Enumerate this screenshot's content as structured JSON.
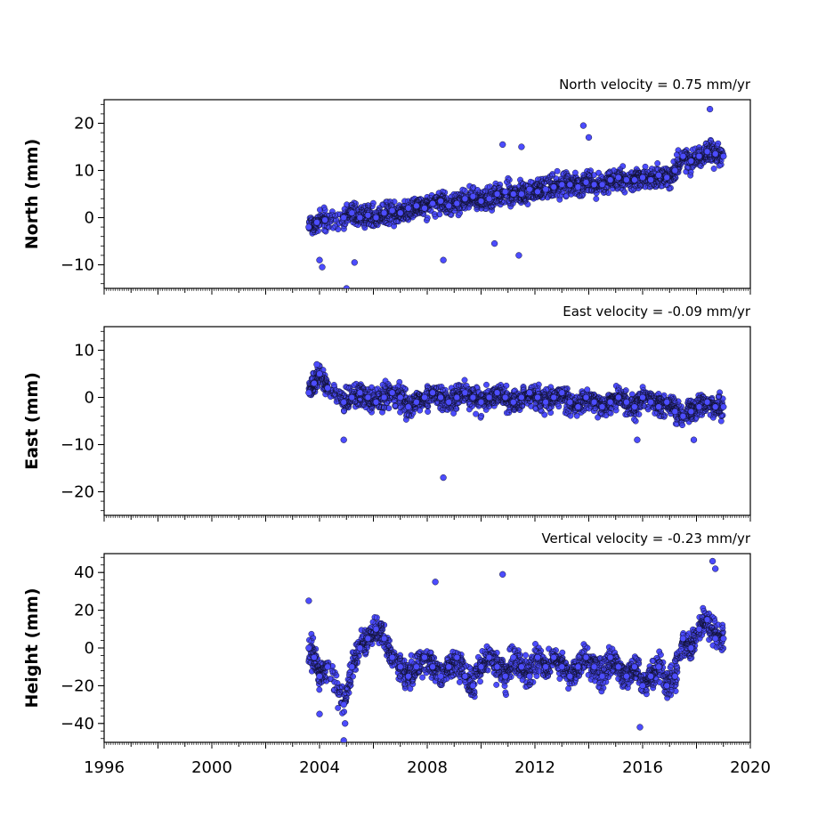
{
  "chart_data": [
    {
      "type": "scatter",
      "title": "North velocity = 0.75 mm/yr",
      "xlabel": "",
      "ylabel": "North (mm)",
      "xlim": [
        1996,
        2020
      ],
      "ylim": [
        -15,
        25
      ],
      "yticks": [
        20,
        10,
        0,
        -10
      ],
      "ytick_labels": [
        "20",
        "10",
        "0",
        "−10"
      ],
      "grid": false,
      "series": [
        {
          "color": "#4c4cff",
          "x": [
            2003.6,
            2003.9,
            2004.2,
            2004.9,
            2005.2,
            2005.5,
            2005.8,
            2006.1,
            2006.4,
            2006.7,
            2007.0,
            2007.3,
            2007.6,
            2007.9,
            2008.2,
            2008.5,
            2008.8,
            2009.1,
            2009.4,
            2009.7,
            2010.0,
            2010.3,
            2010.6,
            2010.9,
            2011.2,
            2011.5,
            2011.8,
            2012.1,
            2012.4,
            2012.7,
            2013.0,
            2013.3,
            2013.6,
            2013.9,
            2014.2,
            2014.5,
            2014.8,
            2015.1,
            2015.4,
            2015.7,
            2016.0,
            2016.3,
            2016.6,
            2016.9,
            2017.2,
            2017.5,
            2017.8,
            2018.1,
            2018.4,
            2018.7,
            2019.0,
            2004.0,
            2004.1,
            2005.0,
            2005.3,
            2008.6,
            2010.5,
            2010.8,
            2011.4,
            2011.5,
            2013.8,
            2014.0,
            2018.5
          ],
          "y": [
            -2,
            -1,
            -0.5,
            0,
            1,
            0,
            0.5,
            0,
            1,
            1.5,
            1,
            2,
            2.5,
            2,
            3,
            3.5,
            2.5,
            3,
            4,
            4.5,
            3.5,
            4,
            5,
            5.5,
            5,
            5,
            6,
            5.5,
            6,
            6.5,
            7,
            7,
            6.5,
            7.5,
            7,
            7,
            8,
            8.5,
            8,
            8,
            8.5,
            8,
            9,
            8.5,
            10,
            13,
            12,
            13,
            14,
            13.5,
            13,
            -9,
            -10.5,
            -15,
            -9.5,
            -9,
            -5.5,
            15.5,
            -8,
            15,
            19.5,
            17,
            23
          ]
        }
      ]
    },
    {
      "type": "scatter",
      "title": "East velocity = -0.09 mm/yr",
      "xlabel": "",
      "ylabel": "East (mm)",
      "xlim": [
        1996,
        2020
      ],
      "ylim": [
        -25,
        15
      ],
      "yticks": [
        10,
        0,
        -10,
        -20
      ],
      "ytick_labels": [
        "10",
        "0",
        "−10",
        "−20"
      ],
      "grid": false,
      "series": [
        {
          "color": "#4c4cff",
          "x": [
            2003.6,
            2003.8,
            2004.0,
            2004.3,
            2004.9,
            2005.2,
            2005.5,
            2005.8,
            2006.1,
            2006.4,
            2006.7,
            2007.0,
            2007.3,
            2007.6,
            2007.9,
            2008.2,
            2008.5,
            2008.8,
            2009.1,
            2009.4,
            2009.7,
            2010.0,
            2010.3,
            2010.6,
            2010.9,
            2011.2,
            2011.5,
            2011.8,
            2012.1,
            2012.4,
            2012.7,
            2013.0,
            2013.3,
            2013.6,
            2013.9,
            2014.2,
            2014.5,
            2014.8,
            2015.1,
            2015.4,
            2015.7,
            2016.0,
            2016.3,
            2016.6,
            2016.9,
            2017.2,
            2017.5,
            2017.8,
            2018.1,
            2018.4,
            2018.7,
            2019.0,
            2003.9,
            2004.9,
            2008.6,
            2015.8,
            2017.9
          ],
          "y": [
            1,
            3,
            5,
            2,
            -1,
            0,
            1,
            0,
            -1,
            0,
            1,
            0,
            -2,
            -1,
            0,
            1,
            0,
            -1,
            0,
            1,
            0,
            -1,
            0,
            1,
            0,
            -1,
            0,
            1,
            0,
            -1,
            0,
            1,
            -1,
            -2,
            0,
            -1,
            -2,
            -1,
            0,
            -1,
            -2,
            0,
            -1,
            -2,
            -1,
            -3,
            -4,
            -3,
            -2,
            -1,
            -2,
            -2,
            7,
            -9,
            -17,
            -9,
            -9
          ]
        }
      ]
    },
    {
      "type": "scatter",
      "title": "Vertical velocity = -0.23 mm/yr",
      "xlabel": "",
      "ylabel": "Height (mm)",
      "xlim": [
        1996,
        2020
      ],
      "ylim": [
        -50,
        50
      ],
      "yticks": [
        40,
        20,
        0,
        -20,
        -40
      ],
      "ytick_labels": [
        "40",
        "20",
        "0",
        "−20",
        "−40"
      ],
      "xticks": [
        1996,
        1998,
        2000,
        2002,
        2004,
        2006,
        2008,
        2010,
        2012,
        2014,
        2016,
        2018,
        2020
      ],
      "xtick_labels": [
        "1996",
        "",
        "2000",
        "",
        "2004",
        "",
        "2008",
        "",
        "2012",
        "",
        "2016",
        "",
        "2020"
      ],
      "grid": false,
      "series": [
        {
          "color": "#4c4cff",
          "x": [
            2003.6,
            2003.8,
            2004.0,
            2004.3,
            2004.9,
            2005.2,
            2005.5,
            2005.8,
            2006.1,
            2006.4,
            2006.7,
            2007.0,
            2007.3,
            2007.6,
            2007.9,
            2008.2,
            2008.5,
            2008.8,
            2009.1,
            2009.4,
            2009.7,
            2010.0,
            2010.3,
            2010.6,
            2010.9,
            2011.2,
            2011.5,
            2011.8,
            2012.1,
            2012.4,
            2012.7,
            2013.0,
            2013.3,
            2013.6,
            2013.9,
            2014.2,
            2014.5,
            2014.8,
            2015.1,
            2015.4,
            2015.7,
            2016.0,
            2016.3,
            2016.6,
            2016.9,
            2017.2,
            2017.5,
            2017.8,
            2018.1,
            2018.4,
            2018.7,
            2019.0,
            2003.6,
            2004.0,
            2004.9,
            2004.95,
            2008.3,
            2010.8,
            2015.9,
            2018.6,
            2018.7
          ],
          "y": [
            0,
            -5,
            -15,
            -10,
            -30,
            -10,
            0,
            5,
            10,
            5,
            -5,
            -10,
            -15,
            -10,
            -5,
            -10,
            -15,
            -10,
            -5,
            -15,
            -20,
            -10,
            -5,
            -10,
            -15,
            -5,
            -10,
            -15,
            -5,
            -10,
            -5,
            -10,
            -15,
            -10,
            -5,
            -10,
            -15,
            -5,
            -10,
            -15,
            -10,
            -20,
            -15,
            -10,
            -20,
            -15,
            5,
            0,
            10,
            15,
            5,
            5,
            25,
            -35,
            -49,
            -40,
            35,
            39,
            -42,
            46,
            42
          ]
        }
      ]
    }
  ]
}
